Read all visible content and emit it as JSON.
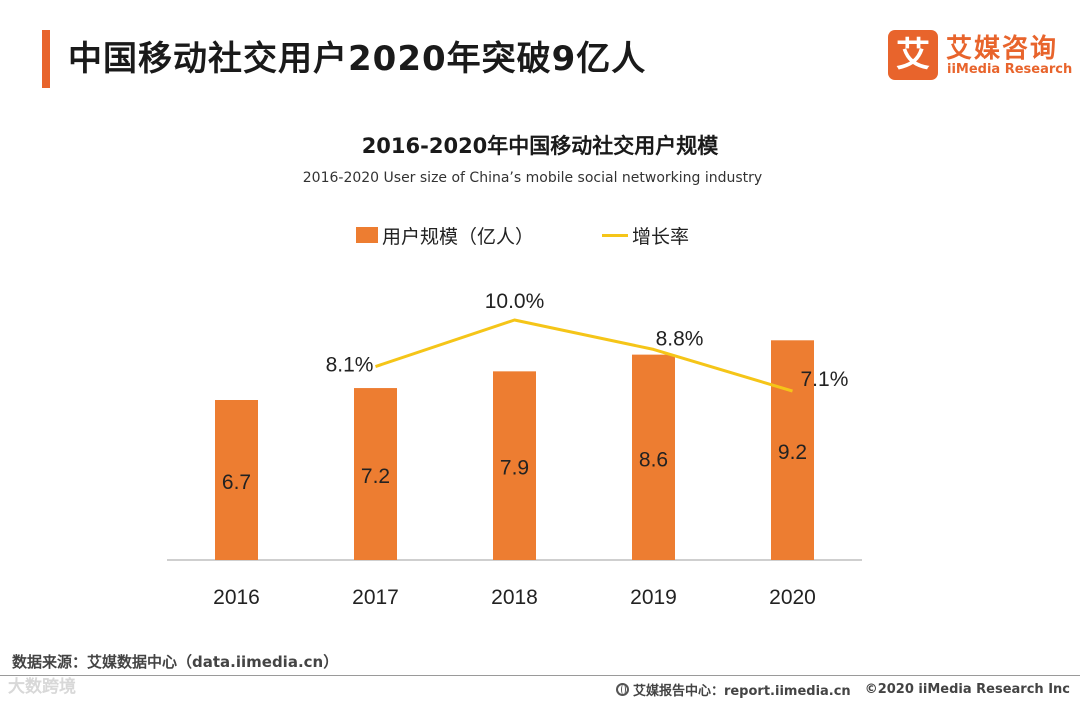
{
  "header": {
    "title": "中国移动社交用户2020年突破9亿人"
  },
  "logo": {
    "mark": "艾",
    "cn": "艾媒咨询",
    "en": "iiMedia Research"
  },
  "chart_data": {
    "type": "bar",
    "title": "2016-2020年中国移动社交用户规模",
    "subtitle": "2016-2020 User size of China’s mobile social networking industry",
    "categories": [
      "2016",
      "2017",
      "2018",
      "2019",
      "2020"
    ],
    "series": [
      {
        "name": "用户规模（亿人）",
        "type": "bar",
        "values": [
          6.7,
          7.2,
          7.9,
          8.6,
          9.2
        ],
        "labels": [
          "6.7",
          "7.2",
          "7.9",
          "8.6",
          "9.2"
        ],
        "color": "#ed7d31"
      },
      {
        "name": "增长率",
        "type": "line",
        "values": [
          null,
          8.1,
          10.0,
          8.8,
          7.1
        ],
        "labels": [
          "",
          "8.1%",
          "10.0%",
          "8.8%",
          "7.1%"
        ],
        "color": "#f5c518",
        "unit": "%"
      }
    ],
    "xlabel": "",
    "ylabel": "",
    "legend_position": "top-center",
    "grid": false
  },
  "footer": {
    "source": "数据来源：艾媒数据中心（data.iimedia.cn）",
    "watermark": "大数跨境",
    "report": "艾媒报告中心：report.iimedia.cn",
    "copyright": "©2020  iiMedia Research  Inc"
  },
  "colors": {
    "accent": "#e8642c",
    "bar": "#ed7d31",
    "line": "#f5c518"
  }
}
